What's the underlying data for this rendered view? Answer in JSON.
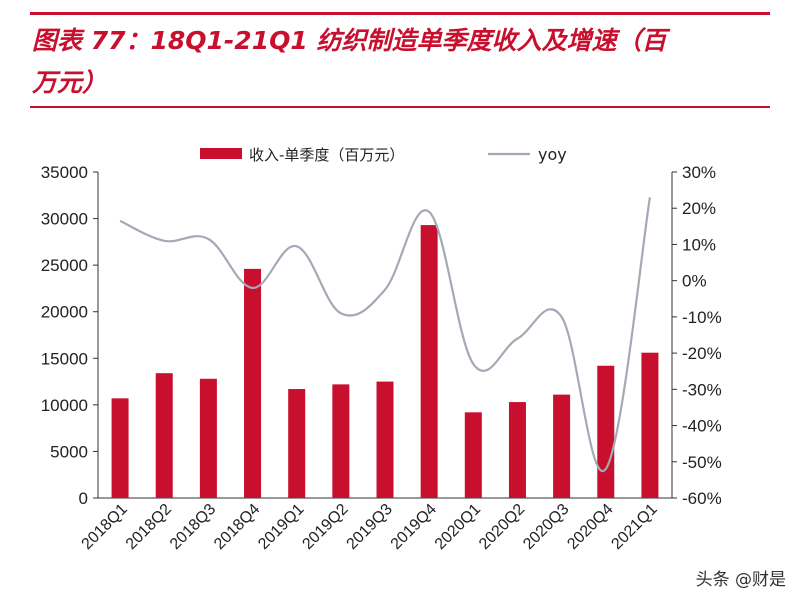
{
  "title": "图表 77：18Q1-21Q1 纺织制造单季度收入及增速（百万元）",
  "title_lines": [
    "图表 77：18Q1-21Q1 纺织制造单季度收入及增速（百",
    "万元）"
  ],
  "watermark": "头条 @财是",
  "colors": {
    "accent": "#c8102e",
    "bar": "#c8102e",
    "line": "#a3aab5",
    "axis": "#333333"
  },
  "chart_data": {
    "type": "bar",
    "categories": [
      "2018Q1",
      "2018Q2",
      "2018Q3",
      "2018Q4",
      "2019Q1",
      "2019Q2",
      "2019Q3",
      "2019Q4",
      "2020Q1",
      "2020Q2",
      "2020Q3",
      "2020Q4",
      "2021Q1"
    ],
    "series": [
      {
        "name": "收入-单季度（百万元）",
        "type": "bar",
        "axis": "left",
        "values": [
          10700,
          13400,
          12800,
          24600,
          11700,
          12200,
          12500,
          29300,
          9200,
          10300,
          11100,
          14200,
          15600
        ]
      },
      {
        "name": "yoy",
        "type": "line",
        "axis": "right",
        "values": [
          16.5,
          11,
          11.5,
          -2,
          9.5,
          -9,
          -2.5,
          19,
          -23,
          -16,
          -10,
          -52,
          23
        ]
      }
    ],
    "y_left": {
      "min": 0,
      "max": 35000,
      "step": 5000,
      "ticks": [
        "0",
        "5000",
        "10000",
        "15000",
        "20000",
        "25000",
        "30000",
        "35000"
      ]
    },
    "y_right": {
      "min": -60,
      "max": 30,
      "step": 10,
      "ticks": [
        "-60%",
        "-50%",
        "-40%",
        "-30%",
        "-20%",
        "-10%",
        "0%",
        "10%",
        "20%",
        "30%"
      ]
    },
    "legend_position": "top",
    "grid": false
  }
}
